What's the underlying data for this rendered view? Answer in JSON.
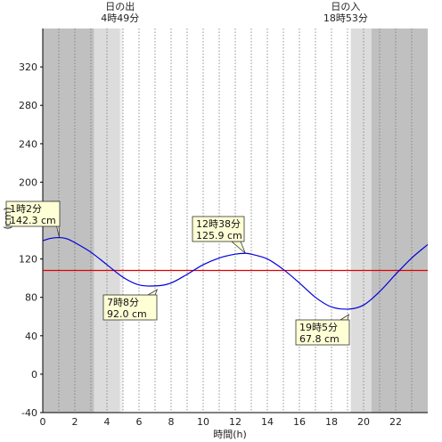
{
  "chart_data": {
    "type": "line",
    "xlabel": "時間(h)",
    "ylabel": "(cm)",
    "xlim": [
      0,
      24
    ],
    "ylim": [
      -40,
      360
    ],
    "x_ticks": [
      0,
      2,
      4,
      6,
      8,
      10,
      12,
      14,
      16,
      18,
      20,
      22
    ],
    "y_ticks": [
      -40,
      0,
      40,
      80,
      120,
      160,
      200,
      240,
      280,
      320
    ],
    "grid": "vertical dotted every 1 h",
    "sun": {
      "sunrise": {
        "label": "日の出",
        "time": "4時49分",
        "hour": 4.82
      },
      "sunset": {
        "label": "日の入",
        "time": "18時53分",
        "hour": 18.88
      }
    },
    "shading": [
      {
        "from": 0,
        "to": 3.2,
        "color": "#c0c0c0"
      },
      {
        "from": 3.2,
        "to": 4.82,
        "color": "#dcdcdc"
      },
      {
        "from": 4.82,
        "to": 5.0,
        "color": "#f2f2f2"
      },
      {
        "from": 19.2,
        "to": 20.5,
        "color": "#dcdcdc"
      },
      {
        "from": 20.5,
        "to": 24,
        "color": "#c0c0c0"
      }
    ],
    "reference_line": {
      "value": 108,
      "color": "#e00000"
    },
    "series": [
      {
        "color": "#0000dd",
        "x": [
          0,
          0.5,
          1.03,
          1.5,
          2,
          3,
          4,
          5,
          6,
          7.13,
          8,
          9,
          10,
          11,
          12,
          12.63,
          13,
          14,
          15,
          16,
          17,
          18,
          19.08,
          20,
          21,
          22,
          23,
          24
        ],
        "y": [
          139,
          141.5,
          142.3,
          141,
          137,
          127,
          114,
          101,
          93,
          92.0,
          95,
          104,
          114,
          121,
          125,
          125.9,
          125,
          120,
          109,
          95,
          80,
          70,
          67.8,
          72,
          86,
          104,
          121,
          135
        ]
      }
    ],
    "annotations": [
      {
        "line1": "1時2分",
        "line2": "142.3 cm",
        "x": 1.03,
        "y": 142.3
      },
      {
        "line1": "7時8分",
        "line2": "92.0 cm",
        "x": 7.13,
        "y": 92.0
      },
      {
        "line1": "12時38分",
        "line2": "125.9 cm",
        "x": 12.63,
        "y": 125.9
      },
      {
        "line1": "19時5分",
        "line2": "67.8 cm",
        "x": 19.08,
        "y": 67.8
      }
    ]
  }
}
